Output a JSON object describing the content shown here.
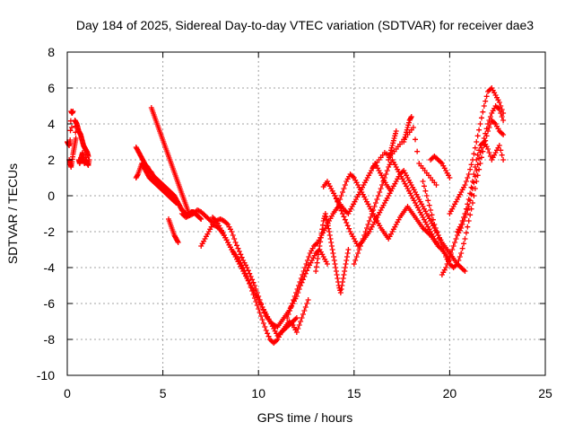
{
  "chart_data": {
    "type": "scatter",
    "title": "Day 184 of 2025, Sidereal Day-to-day VTEC variation (SDTVAR) for receiver dae3",
    "xlabel": "GPS time / hours",
    "ylabel": "SDTVAR / TECUs",
    "xlim": [
      0,
      25
    ],
    "ylim": [
      -10,
      8
    ],
    "xticks": [
      0,
      5,
      10,
      15,
      20,
      25
    ],
    "yticks": [
      -10,
      -8,
      -6,
      -4,
      -2,
      0,
      2,
      4,
      6,
      8
    ],
    "grid": true,
    "marker": "+",
    "color": "#ff0000",
    "series": [
      {
        "x": [
          0.0,
          0.05,
          0.1,
          0.15,
          0.2,
          0.25,
          0.3,
          0.1,
          0.15,
          0.2,
          0.25,
          0.3,
          0.35,
          0.4,
          0.45,
          0.4,
          0.45,
          0.5,
          0.55,
          0.6,
          0.65,
          0.7,
          0.75,
          0.8,
          0.85,
          0.9,
          0.95,
          1.0,
          1.05,
          1.1,
          0.6,
          0.65,
          0.7,
          0.75,
          0.8,
          0.85,
          0.9,
          0.95,
          1.0,
          1.05,
          1.1,
          1.15
        ],
        "y": [
          3.0,
          2.9,
          2.8,
          3.1,
          4.7,
          4.6,
          4.7,
          2.0,
          1.8,
          1.6,
          1.9,
          2.3,
          2.6,
          2.9,
          3.2,
          4.2,
          4.1,
          4.0,
          3.8,
          3.6,
          3.5,
          3.4,
          3.2,
          3.0,
          2.8,
          2.7,
          2.6,
          2.5,
          2.4,
          2.2,
          2.0,
          1.8,
          2.0,
          2.2,
          2.4,
          2.0,
          1.8,
          1.9,
          2.0,
          1.8,
          1.7,
          2.0
        ]
      },
      {
        "x": [
          3.6,
          3.7,
          3.8,
          3.9,
          4.0,
          4.1,
          4.2,
          4.3,
          4.4,
          4.5,
          4.6,
          4.7,
          4.8,
          4.9,
          5.0,
          5.1,
          5.2,
          5.3,
          5.4,
          5.5,
          5.6,
          5.7,
          5.8,
          5.9,
          6.0,
          6.1,
          6.2,
          6.3,
          6.4,
          6.5,
          6.6,
          6.7,
          6.8,
          6.9,
          7.0
        ],
        "y": [
          2.7,
          2.5,
          2.3,
          2.1,
          1.9,
          1.7,
          1.6,
          1.4,
          1.3,
          1.1,
          1.0,
          0.9,
          0.8,
          0.7,
          0.6,
          0.5,
          0.4,
          0.3,
          0.2,
          0.1,
          0.0,
          -0.2,
          -0.4,
          -0.6,
          -0.8,
          -0.9,
          -1.0,
          -1.1,
          -1.0,
          -0.9,
          -0.9,
          -1.0,
          -1.1,
          -1.2,
          -1.3
        ]
      },
      {
        "x": [
          3.6,
          3.7,
          3.8,
          3.9,
          4.0,
          4.1,
          4.2,
          4.3,
          4.4,
          4.5,
          4.6,
          4.7,
          4.8,
          4.9,
          5.0,
          5.1,
          5.2,
          5.3,
          5.4,
          5.5,
          5.6,
          5.7
        ],
        "y": [
          1.0,
          1.2,
          1.5,
          1.8,
          1.6,
          1.4,
          1.2,
          1.0,
          0.9,
          0.8,
          0.7,
          0.6,
          0.5,
          0.4,
          0.3,
          0.2,
          0.1,
          0.0,
          -0.1,
          -0.2,
          -0.3,
          -0.4
        ]
      },
      {
        "x": [
          4.4,
          4.5,
          4.6,
          4.7,
          4.8,
          4.9,
          5.0,
          5.1,
          5.2,
          5.3,
          5.4,
          5.5,
          5.6,
          5.7,
          5.8,
          5.9,
          6.0,
          6.1,
          6.2,
          6.3,
          6.4
        ],
        "y": [
          4.9,
          4.6,
          4.3,
          4.0,
          3.7,
          3.4,
          3.1,
          2.8,
          2.5,
          2.2,
          1.9,
          1.6,
          1.3,
          1.0,
          0.7,
          0.4,
          0.1,
          -0.2,
          -0.5,
          -0.8,
          -1.1
        ]
      },
      {
        "x": [
          5.3,
          5.4,
          5.5,
          5.6,
          5.7,
          5.8
        ],
        "y": [
          -1.3,
          -1.6,
          -1.9,
          -2.2,
          -2.4,
          -2.6
        ]
      },
      {
        "x": [
          6.0,
          6.2,
          6.4,
          6.6,
          6.8,
          7.0,
          7.2,
          7.4,
          7.6,
          7.8,
          8.0,
          8.2,
          8.4,
          8.6,
          8.8,
          9.0,
          9.2,
          9.4,
          9.6,
          9.8,
          10.0,
          10.2,
          10.4,
          10.6,
          10.8,
          11.0,
          11.2,
          11.4,
          11.6,
          11.8,
          12.0,
          12.2,
          12.4,
          12.6,
          12.8,
          13.0,
          13.2,
          13.4,
          13.6
        ],
        "y": [
          -1.0,
          -1.2,
          -1.1,
          -1.0,
          -0.8,
          -0.9,
          -1.1,
          -1.3,
          -1.5,
          -1.4,
          -1.3,
          -1.4,
          -1.6,
          -2.0,
          -2.6,
          -3.1,
          -3.6,
          -4.0,
          -4.5,
          -5.0,
          -5.6,
          -6.2,
          -6.7,
          -7.0,
          -7.2,
          -7.3,
          -7.0,
          -6.7,
          -6.4,
          -6.0,
          -5.6,
          -5.0,
          -4.5,
          -4.0,
          -3.6,
          -3.2,
          -3.0,
          -3.4,
          -3.8
        ]
      },
      {
        "x": [
          7.0,
          7.2,
          7.4,
          7.6,
          7.8,
          8.0,
          8.2,
          8.4,
          8.6,
          8.8,
          9.0,
          9.2,
          9.4,
          9.6,
          9.8,
          10.0,
          10.2,
          10.4,
          10.6,
          10.8,
          11.0,
          11.2,
          11.4,
          11.6,
          11.8,
          12.0,
          12.2,
          12.4,
          12.6
        ],
        "y": [
          -2.8,
          -2.4,
          -2.0,
          -1.6,
          -1.7,
          -1.9,
          -2.2,
          -2.6,
          -3.0,
          -3.3,
          -3.6,
          -4.0,
          -4.5,
          -5.1,
          -5.7,
          -6.3,
          -6.9,
          -7.5,
          -8.0,
          -8.2,
          -8.0,
          -7.6,
          -7.3,
          -7.0,
          -7.2,
          -7.6,
          -7.0,
          -6.4,
          -5.8
        ]
      },
      {
        "x": [
          7.6,
          7.8,
          8.0,
          8.2,
          8.4,
          8.6,
          8.8,
          9.0,
          9.2,
          9.4,
          9.6,
          9.8,
          10.0,
          10.2,
          10.4,
          10.6,
          10.8,
          11.0,
          11.2,
          11.4,
          11.6,
          11.8,
          12.0
        ],
        "y": [
          -1.2,
          -1.4,
          -1.8,
          -2.2,
          -2.6,
          -3.0,
          -3.4,
          -3.8,
          -4.2,
          -4.6,
          -5.0,
          -5.4,
          -5.8,
          -6.2,
          -6.6,
          -7.0,
          -7.4,
          -7.8,
          -7.6,
          -7.4,
          -7.2,
          -7.0,
          -6.8
        ]
      },
      {
        "x": [
          11.5,
          11.7,
          11.9,
          12.1,
          12.3,
          12.5,
          12.7,
          12.9,
          13.1,
          13.3,
          13.5,
          13.7,
          13.9,
          14.1,
          14.3,
          14.5,
          14.7,
          14.9,
          15.1,
          15.3,
          15.5,
          15.7,
          15.9,
          16.1,
          16.3,
          16.5,
          16.7,
          16.9
        ],
        "y": [
          -6.8,
          -6.2,
          -5.6,
          -5.0,
          -4.4,
          -3.8,
          -3.2,
          -2.8,
          -2.6,
          -2.2,
          -1.8,
          -1.4,
          -1.0,
          -0.7,
          -0.5,
          -0.8,
          -1.0,
          -0.6,
          -0.2,
          0.2,
          0.6,
          1.0,
          1.4,
          1.8,
          1.4,
          1.0,
          0.6,
          0.3
        ]
      },
      {
        "x": [
          13.0,
          13.1,
          13.2,
          13.3,
          13.4,
          13.5,
          13.6,
          13.7,
          13.8,
          13.9,
          14.0,
          14.1,
          14.2,
          14.3,
          14.4,
          14.5,
          14.6,
          14.7
        ],
        "y": [
          -4.2,
          -3.5,
          -2.8,
          -2.1,
          -1.4,
          -1.0,
          -1.5,
          -2.0,
          -2.6,
          -3.2,
          -3.8,
          -4.4,
          -5.0,
          -5.4,
          -4.8,
          -4.2,
          -3.6,
          -3.0
        ]
      },
      {
        "x": [
          13.4,
          13.6,
          13.8,
          14.0,
          14.2,
          14.4,
          14.6,
          14.8,
          15.0,
          15.2,
          15.4,
          15.6,
          15.8,
          16.0,
          16.2,
          16.4,
          16.6,
          16.8,
          17.0,
          17.2,
          17.4,
          17.6,
          17.8,
          18.0,
          18.2,
          18.4,
          18.6,
          18.8,
          19.0,
          19.2,
          19.4,
          19.6,
          19.8,
          20.0
        ],
        "y": [
          0.5,
          0.8,
          0.4,
          0.0,
          -0.4,
          0.2,
          0.8,
          1.2,
          1.0,
          0.6,
          0.2,
          -0.2,
          -0.6,
          -1.0,
          -1.4,
          -1.8,
          -2.1,
          -2.4,
          -2.0,
          -1.6,
          -1.2,
          -0.9,
          -0.6,
          -0.9,
          -1.2,
          -1.5,
          -1.8,
          -2.0,
          -2.2,
          -2.5,
          -2.8,
          -3.0,
          -3.3,
          -3.6
        ]
      },
      {
        "x": [
          14.0,
          14.2,
          14.4,
          14.6,
          14.8,
          15.0,
          15.2,
          15.4,
          15.6,
          15.8,
          16.0,
          16.2,
          16.4,
          16.6,
          16.8,
          17.0,
          17.2,
          17.4,
          17.6,
          17.8,
          18.0,
          18.2,
          18.4,
          18.6,
          18.8,
          19.0,
          19.2,
          19.4,
          19.6,
          19.8,
          20.0,
          20.2,
          20.4,
          20.6,
          20.8
        ],
        "y": [
          0.0,
          -0.5,
          -1.0,
          -1.5,
          -2.0,
          -2.4,
          -2.8,
          -2.6,
          -2.3,
          -2.0,
          -1.6,
          -1.2,
          -0.8,
          -0.4,
          0.0,
          0.4,
          0.8,
          1.2,
          1.4,
          1.0,
          0.6,
          0.2,
          -0.2,
          -0.6,
          -1.0,
          -1.4,
          -1.8,
          -2.2,
          -2.6,
          -2.9,
          -3.2,
          -3.5,
          -3.8,
          -4.0,
          -4.2
        ]
      },
      {
        "x": [
          15.0,
          15.2,
          15.4,
          15.6,
          15.8,
          16.0,
          16.2,
          16.4,
          16.6,
          16.8,
          17.0,
          17.2,
          17.4,
          17.6,
          17.8,
          18.0,
          18.2,
          18.4,
          18.6,
          18.8,
          19.0,
          19.2,
          19.4
        ],
        "y": [
          -3.8,
          -3.2,
          -2.6,
          -2.0,
          -1.4,
          -0.8,
          -0.2,
          0.4,
          1.0,
          1.6,
          2.0,
          1.6,
          1.2,
          0.8,
          0.4,
          0.0,
          -0.4,
          -0.8,
          -1.2,
          -1.6,
          -2.0,
          -2.4,
          -2.8
        ]
      },
      {
        "x": [
          16.0,
          16.3,
          16.6,
          16.9,
          17.2,
          17.5,
          17.8,
          18.1,
          18.4,
          18.7,
          19.0,
          19.3
        ],
        "y": [
          1.6,
          2.0,
          2.4,
          2.2,
          2.6,
          3.0,
          3.4,
          3.8,
          1.8,
          1.4,
          1.0,
          0.6
        ]
      },
      {
        "x": [
          17.6,
          17.7,
          17.8,
          17.9,
          18.0
        ],
        "y": [
          3.0,
          3.4,
          3.8,
          4.2,
          4.4
        ]
      },
      {
        "x": [
          16.8,
          16.9,
          17.0,
          17.1,
          17.2
        ],
        "y": [
          2.0,
          2.4,
          2.8,
          3.2,
          3.6
        ]
      },
      {
        "x": [
          18.6,
          18.8,
          19.0,
          19.2,
          19.4,
          19.6,
          19.8,
          20.0,
          20.2,
          20.4,
          20.6,
          20.8,
          21.0,
          21.2,
          21.4,
          21.6,
          21.8,
          22.0,
          22.2,
          22.4,
          22.6,
          22.8
        ],
        "y": [
          0.8,
          0.0,
          -0.8,
          -1.6,
          -2.2,
          -2.8,
          -3.4,
          -3.8,
          -4.0,
          -3.8,
          -3.2,
          -2.4,
          -1.4,
          -0.4,
          0.8,
          1.8,
          2.8,
          3.6,
          4.2,
          4.0,
          3.6,
          3.4
        ]
      },
      {
        "x": [
          19.6,
          19.8,
          20.0,
          20.2,
          20.4,
          20.6,
          20.8,
          21.0,
          21.2,
          21.4,
          21.6,
          21.8,
          22.0,
          22.2,
          22.4,
          22.6,
          22.8
        ],
        "y": [
          -4.4,
          -4.0,
          -3.4,
          -2.8,
          -2.2,
          -1.8,
          -1.2,
          -0.6,
          0.4,
          1.4,
          2.4,
          3.2,
          4.0,
          4.6,
          5.0,
          4.8,
          4.2
        ]
      },
      {
        "x": [
          20.0,
          20.2,
          20.4,
          20.6,
          20.8,
          21.0,
          21.2,
          21.4,
          21.6,
          21.8,
          22.0,
          22.2,
          22.4,
          22.6,
          22.8
        ],
        "y": [
          -1.0,
          -0.6,
          -0.2,
          0.2,
          0.6,
          1.2,
          2.0,
          3.0,
          4.0,
          5.0,
          5.8,
          6.0,
          5.6,
          5.2,
          4.6
        ]
      },
      {
        "x": [
          20.4,
          20.6,
          20.8,
          21.0,
          21.2,
          21.4,
          21.6,
          21.8,
          22.0,
          22.2,
          22.4,
          22.6,
          22.8
        ],
        "y": [
          -2.0,
          -1.6,
          -1.0,
          -0.2,
          0.8,
          2.0,
          2.8,
          3.0,
          2.6,
          2.0,
          2.4,
          2.8,
          2.0
        ]
      },
      {
        "x": [
          19.0,
          19.2,
          19.4,
          19.6,
          19.8,
          20.0
        ],
        "y": [
          2.0,
          2.2,
          2.0,
          1.8,
          1.4,
          1.0
        ]
      }
    ]
  }
}
